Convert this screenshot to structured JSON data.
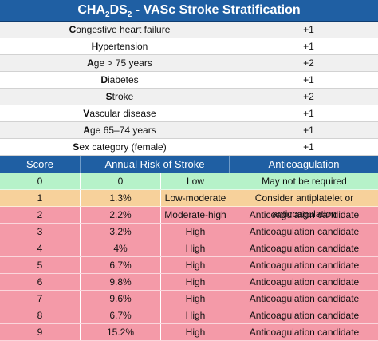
{
  "title": {
    "prefix": "CHA",
    "sub1": "2",
    "mid": "DS",
    "sub2": "2",
    "suffix": " - VASc Stroke Stratification"
  },
  "factors": [
    {
      "lead": "C",
      "rest": "ongestive heart failure",
      "points": "+1"
    },
    {
      "lead": "H",
      "rest": "ypertension",
      "points": "+1"
    },
    {
      "lead": "A",
      "rest": "ge > 75 years",
      "points": "+2"
    },
    {
      "lead": "D",
      "rest": "iabetes",
      "points": "+1"
    },
    {
      "lead": "S",
      "rest": "troke",
      "points": "+2"
    },
    {
      "lead": "V",
      "rest": "ascular disease",
      "points": "+1"
    },
    {
      "lead": "A",
      "rest": "ge 65–74 years",
      "points": "+1"
    },
    {
      "lead": "S",
      "rest": "ex category (female)",
      "points": "+1"
    }
  ],
  "grid": {
    "headers": [
      "Score",
      "Annual Risk of Stroke",
      "Anticoagulation"
    ],
    "rows": [
      {
        "score": "0",
        "risk": "0",
        "level": "Low",
        "anticoag": "May not be required",
        "color": "green"
      },
      {
        "score": "1",
        "risk": "1.3%",
        "level": "Low-moderate",
        "anticoag": "Consider antiplatelet or anticoagulation",
        "color": "orange"
      },
      {
        "score": "2",
        "risk": "2.2%",
        "level": "Moderate-high",
        "anticoag": "Anticoagulation candidate",
        "color": "red"
      },
      {
        "score": "3",
        "risk": "3.2%",
        "level": "High",
        "anticoag": "Anticoagulation candidate",
        "color": "red"
      },
      {
        "score": "4",
        "risk": "4%",
        "level": "High",
        "anticoag": "Anticoagulation candidate",
        "color": "red"
      },
      {
        "score": "5",
        "risk": "6.7%",
        "level": "High",
        "anticoag": "Anticoagulation candidate",
        "color": "red"
      },
      {
        "score": "6",
        "risk": "9.8%",
        "level": "High",
        "anticoag": "Anticoagulation candidate",
        "color": "red"
      },
      {
        "score": "7",
        "risk": "9.6%",
        "level": "High",
        "anticoag": "Anticoagulation candidate",
        "color": "red"
      },
      {
        "score": "8",
        "risk": "6.7%",
        "level": "High",
        "anticoag": "Anticoagulation candidate",
        "color": "red"
      },
      {
        "score": "9",
        "risk": "15.2%",
        "level": "High",
        "anticoag": "Anticoagulation candidate",
        "color": "red"
      }
    ]
  },
  "colors": {
    "header_blue": "#1f5fa3",
    "green": "#b6f2c9",
    "orange": "#f7d19b",
    "red": "#f49aa8"
  }
}
